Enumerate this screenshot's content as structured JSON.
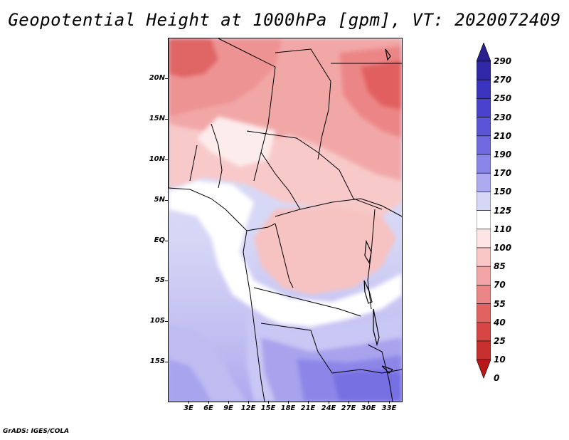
{
  "title": "Geopotential Height at 1000hPa [gpm], VT: 2020072409",
  "footer": "GrADS: IGES/COLA",
  "lat_labels": [
    "20N",
    "15N",
    "10N",
    "5N",
    "EQ",
    "5S",
    "10S",
    "15S"
  ],
  "lon_labels": [
    "3E",
    "6E",
    "9E",
    "12E",
    "15E",
    "18E",
    "21E",
    "24E",
    "27E",
    "30E",
    "33E"
  ],
  "colorbar": {
    "labels": [
      "290",
      "270",
      "250",
      "230",
      "210",
      "190",
      "170",
      "150",
      "125",
      "110",
      "100",
      "85",
      "70",
      "55",
      "40",
      "25",
      "10",
      "0"
    ],
    "colors": [
      "#2a1f8f",
      "#3128a8",
      "#3a33bd",
      "#4a42cc",
      "#5a55d8",
      "#7069e0",
      "#8a85e8",
      "#aeaaf0",
      "#d6d7f6",
      "#ffffff",
      "#fde5e5",
      "#f9c6c6",
      "#f3a5a5",
      "#ec8585",
      "#e26262",
      "#d84545",
      "#c83030",
      "#b81818"
    ]
  }
}
